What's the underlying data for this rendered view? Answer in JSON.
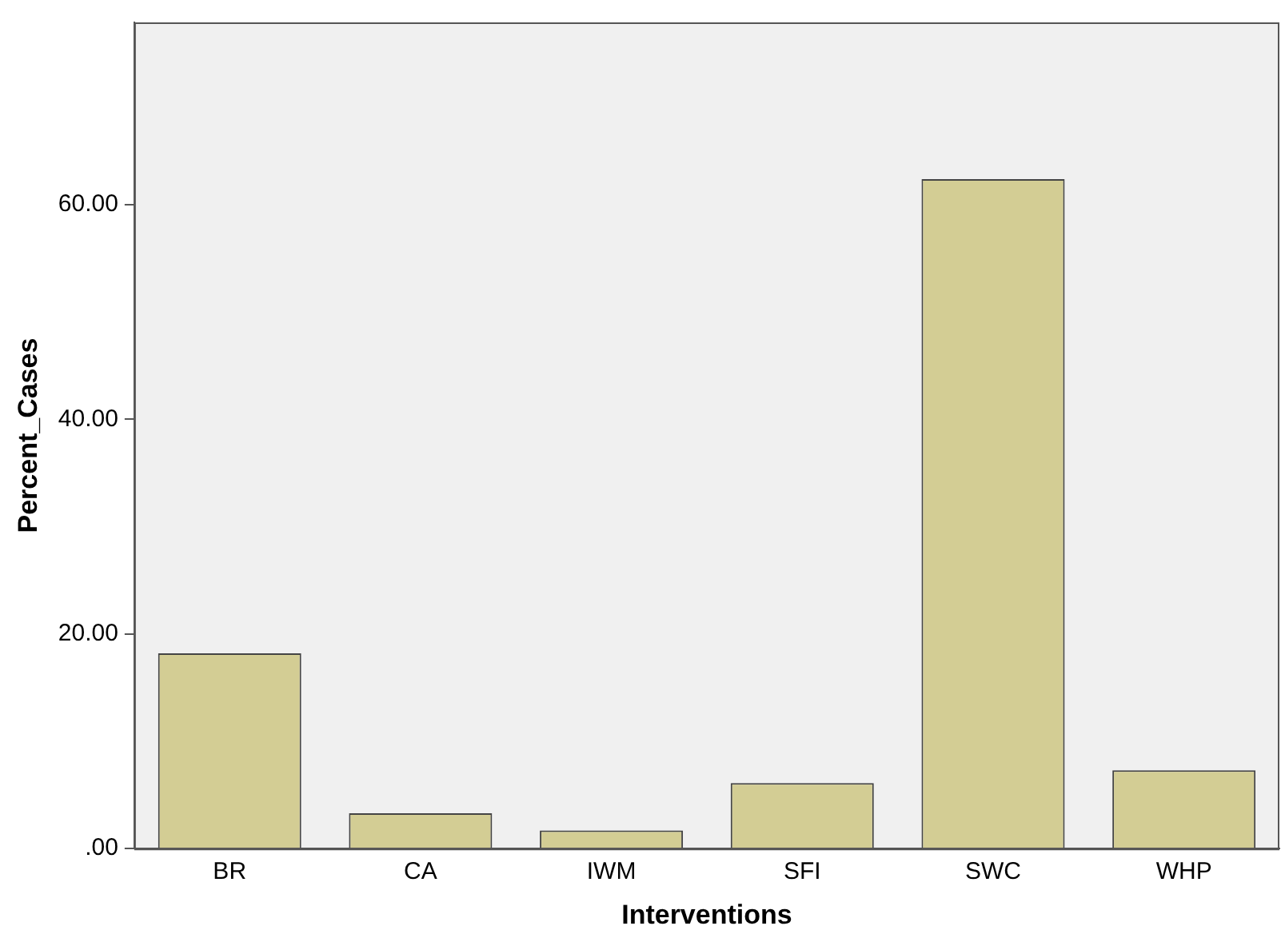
{
  "chart_data": {
    "type": "bar",
    "xlabel": "Interventions",
    "ylabel": "Percent_Cases",
    "categories": [
      "BR",
      "CA",
      "IWM",
      "SFI",
      "SWC",
      "WHP"
    ],
    "values": [
      18.2,
      3.3,
      1.7,
      6.1,
      62.4,
      7.3
    ],
    "color": "#d3cd94",
    "ylim": [
      0,
      77
    ],
    "yticks": [
      {
        "value": 0,
        "label": ".00"
      },
      {
        "value": 20,
        "label": "20.00"
      },
      {
        "value": 40,
        "label": "40.00"
      },
      {
        "value": 60,
        "label": "60.00"
      }
    ],
    "grid": false,
    "legend": false
  }
}
